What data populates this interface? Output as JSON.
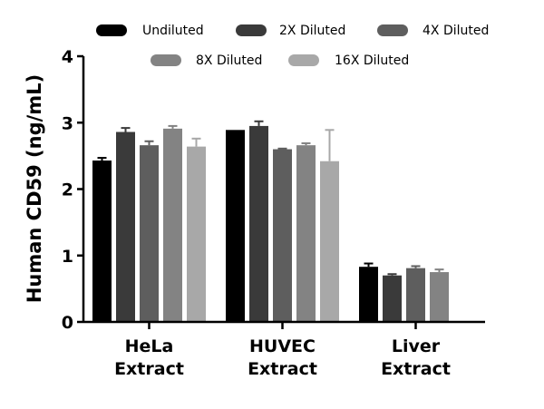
{
  "chart_data": {
    "type": "bar",
    "title": "",
    "xlabel": "",
    "ylabel": "Human CD59 (ng/mL)",
    "ylim": [
      0,
      4
    ],
    "yticks": [
      "0",
      "1",
      "2",
      "3",
      "4"
    ],
    "categories": [
      [
        "HeLa",
        "Extract"
      ],
      [
        "HUVEC",
        "Extract"
      ],
      [
        "Liver",
        "Extract"
      ]
    ],
    "legend_position": "top",
    "series": [
      {
        "name": "Undiluted",
        "color": "#000000",
        "values": [
          2.43,
          2.89,
          0.83
        ],
        "errors": [
          0.04,
          0.0,
          0.05
        ]
      },
      {
        "name": "2X Diluted",
        "color": "#3a3a3a",
        "values": [
          2.86,
          2.95,
          0.7
        ],
        "errors": [
          0.06,
          0.07,
          0.02
        ]
      },
      {
        "name": "4X Diluted",
        "color": "#5e5e5e",
        "values": [
          2.66,
          2.6,
          0.81
        ],
        "errors": [
          0.06,
          0.01,
          0.03
        ]
      },
      {
        "name": "8X Diluted",
        "color": "#838383",
        "values": [
          2.91,
          2.66,
          0.75
        ],
        "errors": [
          0.04,
          0.03,
          0.04
        ]
      },
      {
        "name": "16X Diluted",
        "color": "#a8a8a8",
        "values": [
          2.64,
          2.42,
          null
        ],
        "errors": [
          0.12,
          0.47,
          null
        ]
      }
    ]
  }
}
